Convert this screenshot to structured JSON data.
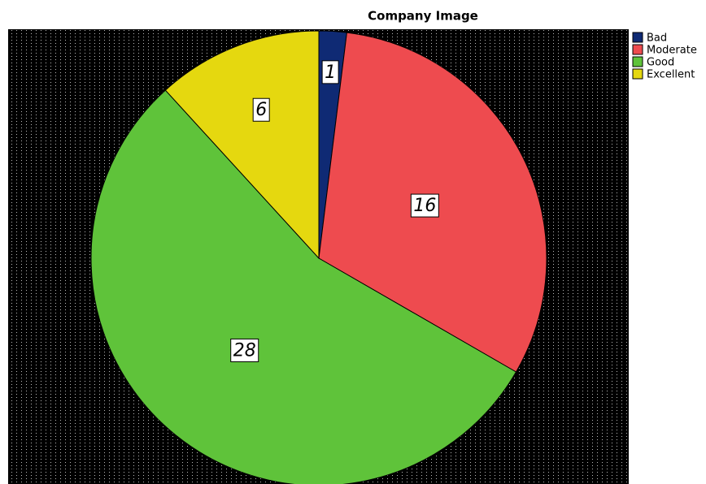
{
  "chart_data": {
    "type": "pie",
    "title": "Company Image",
    "categories": [
      "Bad",
      "Moderate",
      "Good",
      "Excellent"
    ],
    "values": [
      1,
      16,
      28,
      6
    ],
    "colors": [
      "#0f2a74",
      "#ee4b4f",
      "#5fc33a",
      "#e5d80f"
    ],
    "legend": "right"
  }
}
